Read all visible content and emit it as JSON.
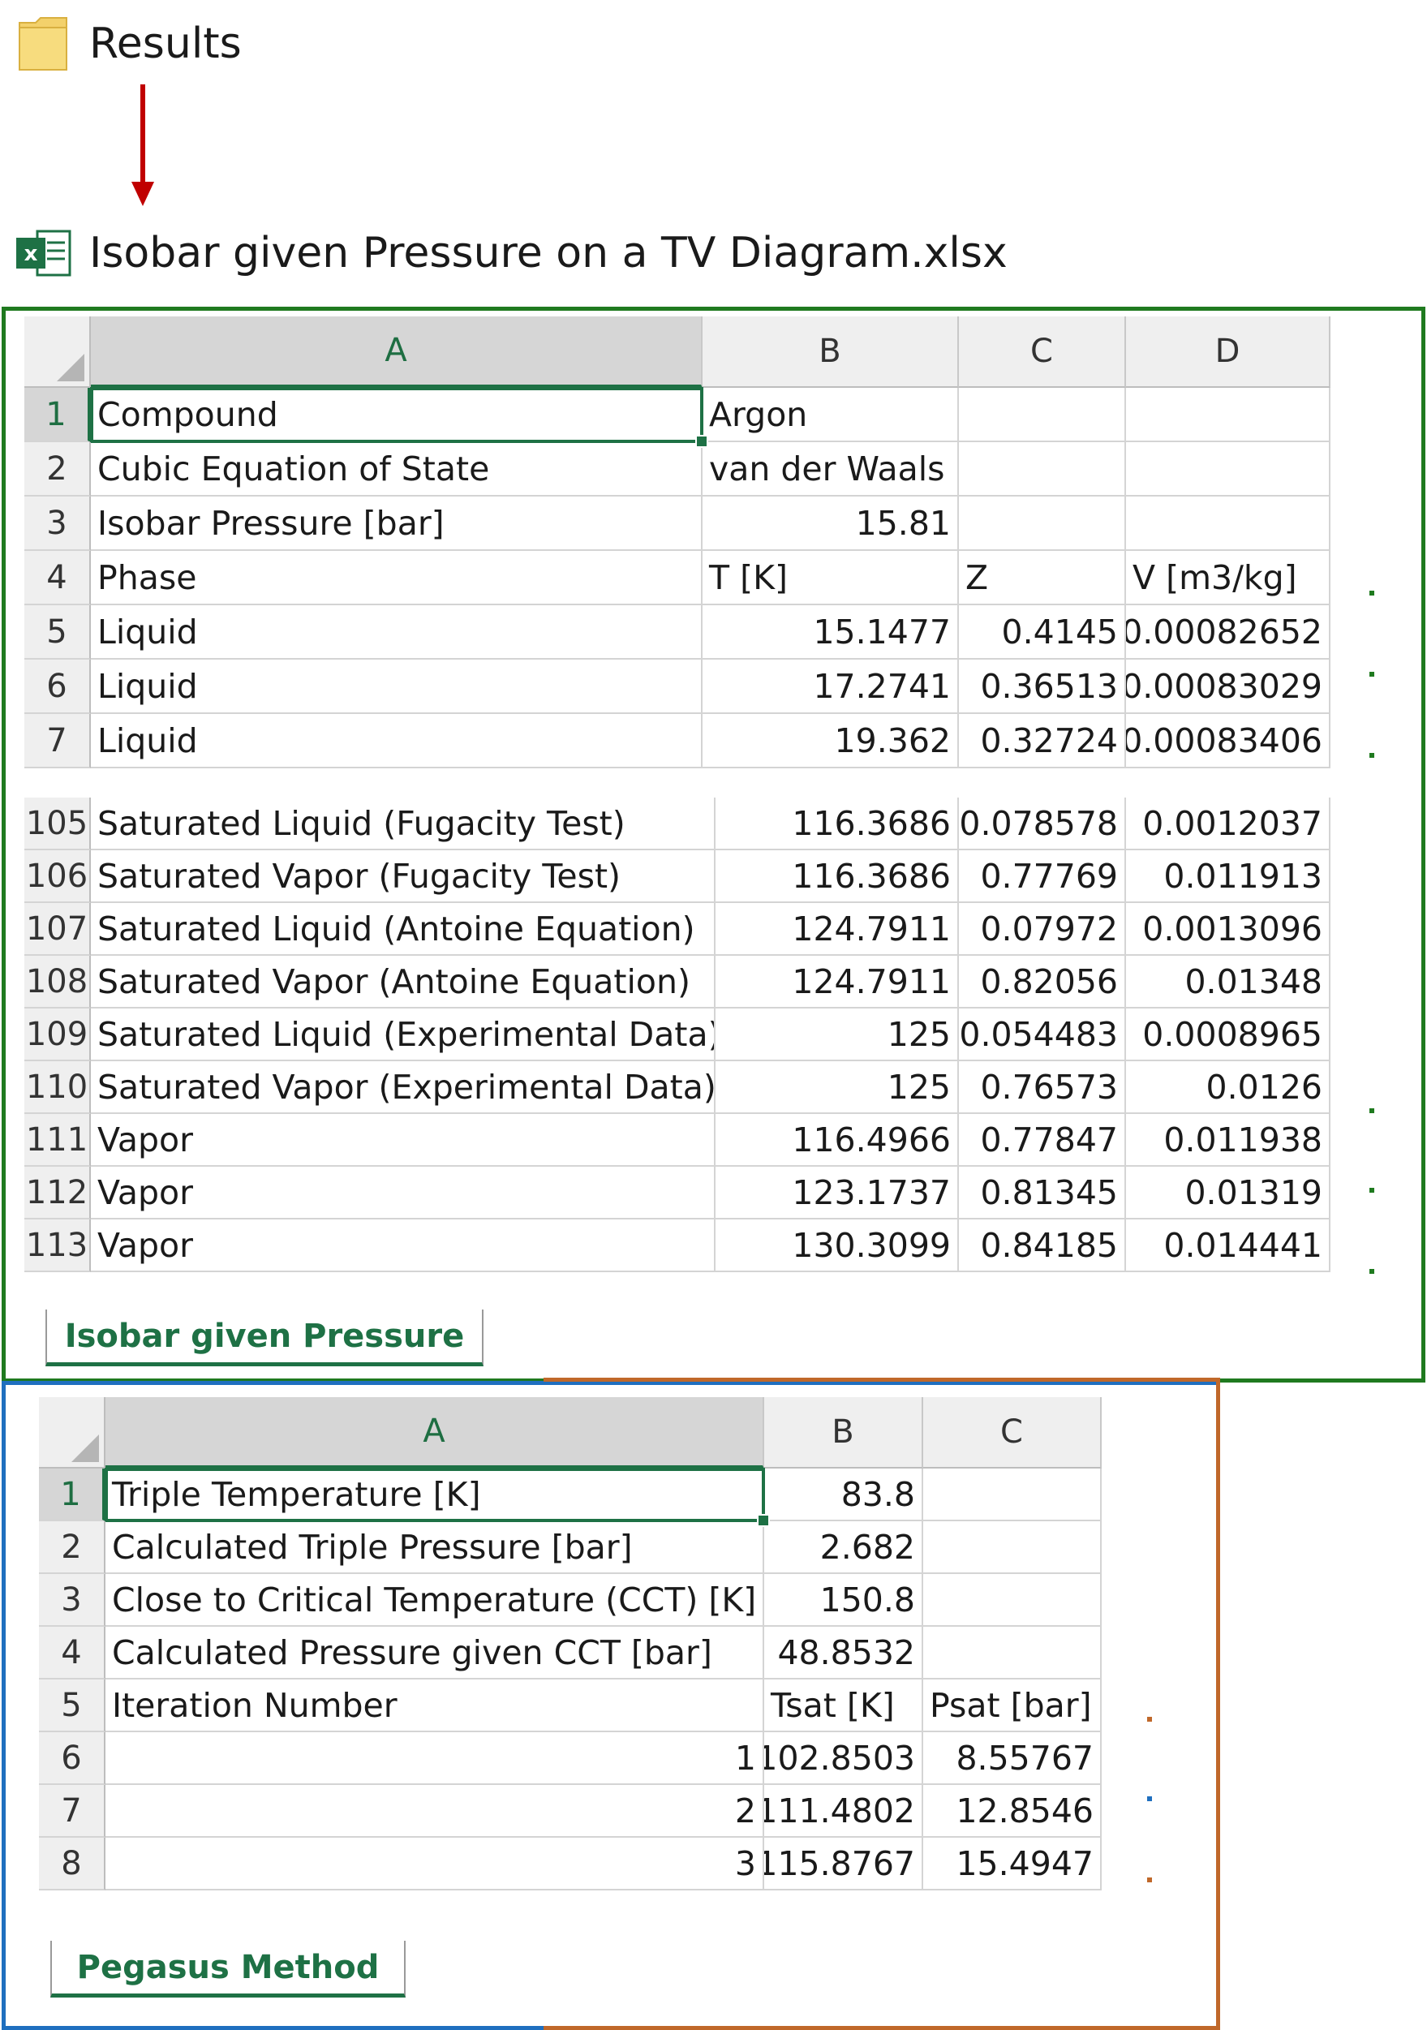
{
  "folder": {
    "label": "Results",
    "icon": "folder-icon"
  },
  "file": {
    "label": "Isobar given Pressure on a TV Diagram.xlsx",
    "icon": "excel-file-icon"
  },
  "colors": {
    "green_frame": "#1f7a1f",
    "blue_frame": "#1f6fbf",
    "orange_frame": "#c0682a",
    "arrow": "#c00000",
    "excel_green": "#1e7145"
  },
  "sheet1": {
    "tab_label": "Isobar given Pressure",
    "columns": [
      "A",
      "B",
      "C",
      "D"
    ],
    "rows_top": [
      {
        "n": "1",
        "a": "Compound",
        "b": "Argon",
        "c": "",
        "d": ""
      },
      {
        "n": "2",
        "a": "Cubic Equation of State",
        "b": "van der Waals",
        "c": "",
        "d": ""
      },
      {
        "n": "3",
        "a": "Isobar Pressure [bar]",
        "b": "15.81",
        "c": "",
        "d": ""
      },
      {
        "n": "4",
        "a": "Phase",
        "b": "T [K]",
        "c": "Z",
        "d": "V [m3/kg]"
      },
      {
        "n": "5",
        "a": "Liquid",
        "b": "15.1477",
        "c": "0.4145",
        "d": "0.00082652"
      },
      {
        "n": "6",
        "a": "Liquid",
        "b": "17.2741",
        "c": "0.36513",
        "d": "0.00083029"
      },
      {
        "n": "7",
        "a": "Liquid",
        "b": "19.362",
        "c": "0.32724",
        "d": "0.00083406"
      }
    ],
    "rows_bottom": [
      {
        "n": "105",
        "a": "Saturated Liquid (Fugacity Test)",
        "b": "116.3686",
        "c": "0.078578",
        "d": "0.0012037"
      },
      {
        "n": "106",
        "a": "Saturated Vapor (Fugacity Test)",
        "b": "116.3686",
        "c": "0.77769",
        "d": "0.011913"
      },
      {
        "n": "107",
        "a": "Saturated Liquid (Antoine Equation)",
        "b": "124.7911",
        "c": "0.07972",
        "d": "0.0013096"
      },
      {
        "n": "108",
        "a": "Saturated Vapor (Antoine Equation)",
        "b": "124.7911",
        "c": "0.82056",
        "d": "0.01348"
      },
      {
        "n": "109",
        "a": "Saturated Liquid (Experimental Data)",
        "b": "125",
        "c": "0.054483",
        "d": "0.0008965"
      },
      {
        "n": "110",
        "a": "Saturated Vapor (Experimental Data)",
        "b": "125",
        "c": "0.76573",
        "d": "0.0126"
      },
      {
        "n": "111",
        "a": "Vapor",
        "b": "116.4966",
        "c": "0.77847",
        "d": "0.011938"
      },
      {
        "n": "112",
        "a": "Vapor",
        "b": "123.1737",
        "c": "0.81345",
        "d": "0.01319"
      },
      {
        "n": "113",
        "a": "Vapor",
        "b": "130.3099",
        "c": "0.84185",
        "d": "0.014441"
      }
    ]
  },
  "sheet2": {
    "tab_label": "Pegasus Method",
    "columns": [
      "A",
      "B",
      "C"
    ],
    "rows": [
      {
        "n": "1",
        "a": "Triple Temperature [K]",
        "b": "83.8",
        "c": ""
      },
      {
        "n": "2",
        "a": "Calculated Triple Pressure [bar]",
        "b": "2.682",
        "c": ""
      },
      {
        "n": "3",
        "a": "Close to Critical Temperature (CCT) [K]",
        "b": "150.8",
        "c": ""
      },
      {
        "n": "4",
        "a": "Calculated Pressure given CCT [bar]",
        "b": "48.8532",
        "c": ""
      },
      {
        "n": "5",
        "a": "Iteration Number",
        "b": "Tsat [K]",
        "c": "Psat [bar]"
      },
      {
        "n": "6",
        "a": "1",
        "b": "102.8503",
        "c": "8.55767"
      },
      {
        "n": "7",
        "a": "2",
        "b": "111.4802",
        "c": "12.8546"
      },
      {
        "n": "8",
        "a": "3",
        "b": "115.8767",
        "c": "15.4947"
      }
    ]
  }
}
